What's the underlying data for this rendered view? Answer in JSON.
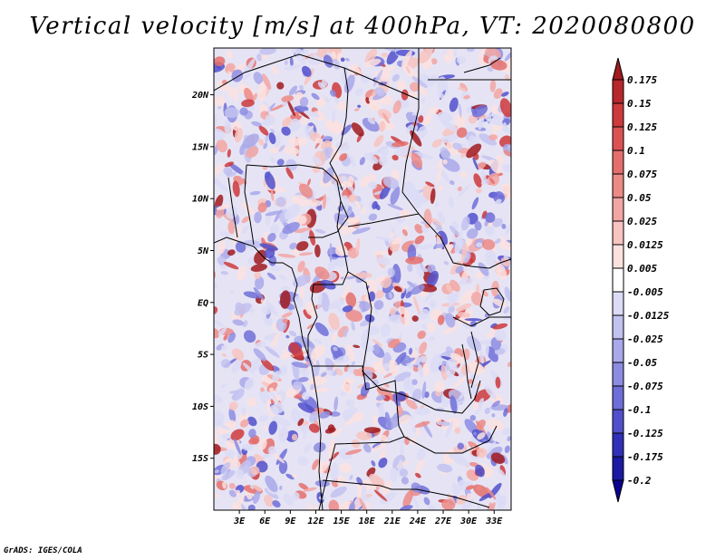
{
  "title": "Vertical velocity [m/s] at 400hPa, VT: 2020080800",
  "footer": "GrADS: IGES/COLA",
  "map": {
    "lon_range": [
      0,
      35
    ],
    "lat_range": [
      -20,
      24.5
    ],
    "lat_ticks": [
      {
        "value": 20,
        "label": "20N"
      },
      {
        "value": 15,
        "label": "15N"
      },
      {
        "value": 10,
        "label": "10N"
      },
      {
        "value": 5,
        "label": "5N"
      },
      {
        "value": 0,
        "label": "EQ"
      },
      {
        "value": -5,
        "label": "5S"
      },
      {
        "value": -10,
        "label": "10S"
      },
      {
        "value": -15,
        "label": "15S"
      }
    ],
    "lon_ticks": [
      {
        "value": 3,
        "label": "3E"
      },
      {
        "value": 6,
        "label": "6E"
      },
      {
        "value": 9,
        "label": "9E"
      },
      {
        "value": 12,
        "label": "12E"
      },
      {
        "value": 15,
        "label": "15E"
      },
      {
        "value": 18,
        "label": "18E"
      },
      {
        "value": 21,
        "label": "21E"
      },
      {
        "value": 24,
        "label": "24E"
      },
      {
        "value": 27,
        "label": "27E"
      },
      {
        "value": 30,
        "label": "30E"
      },
      {
        "value": 33,
        "label": "33E"
      }
    ]
  },
  "colorbar": {
    "levels": [
      "0.175",
      "0.15",
      "0.125",
      "0.1",
      "0.075",
      "0.05",
      "0.025",
      "0.0125",
      "0.005",
      "-0.005",
      "-0.0125",
      "-0.025",
      "-0.05",
      "-0.075",
      "-0.1",
      "-0.125",
      "-0.175",
      "-0.2"
    ],
    "colors": [
      "#a01a1e",
      "#b8272b",
      "#cc3a3c",
      "#dc5253",
      "#e46e6c",
      "#ec8a86",
      "#f2a6a2",
      "#f7c4c0",
      "#fbe2df",
      "#ffffff",
      "#dcdcf6",
      "#c2c2f0",
      "#a8a8ea",
      "#8c8ce2",
      "#6e6ed8",
      "#5050cc",
      "#3030b8",
      "#1a1aa4",
      "#0a0090"
    ]
  },
  "field_colors": {
    "up": [
      "#fbe2df",
      "#f7c4c0",
      "#f2a6a2",
      "#ec8a86",
      "#e46e6c",
      "#cc3a3c",
      "#a01a1e"
    ],
    "down": [
      "#dcdcf6",
      "#c2c2f0",
      "#a8a8ea",
      "#8c8ce2",
      "#6e6ed8",
      "#5050cc"
    ]
  }
}
